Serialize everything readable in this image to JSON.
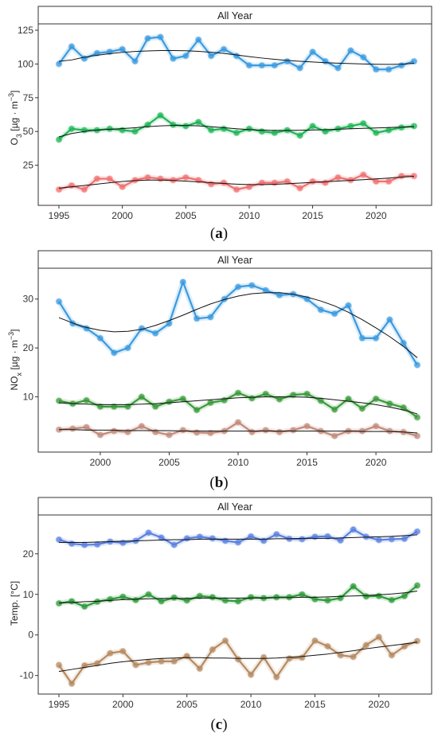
{
  "chart_data": [
    {
      "type": "line",
      "panel_label": "a",
      "strip_title": "All Year",
      "ylabel": "O",
      "ylabel_sub": "3",
      "ylabel_rest": " [µg · m",
      "ylabel_sup": "−3",
      "ylabel_end": "]",
      "xlabel": "",
      "xlim": [
        1995,
        2023
      ],
      "ylim": [
        0,
        125
      ],
      "xticks": [
        "1995",
        "2000",
        "2005",
        "2010",
        "2015",
        "2020"
      ],
      "yticks": [
        "25",
        "50",
        "75",
        "100",
        "125"
      ],
      "x": [
        1995,
        1996,
        1997,
        1998,
        1999,
        2000,
        2001,
        2002,
        2003,
        2004,
        2005,
        2006,
        2007,
        2008,
        2009,
        2010,
        2011,
        2012,
        2013,
        2014,
        2015,
        2016,
        2017,
        2018,
        2019,
        2020,
        2021,
        2022,
        2023
      ],
      "series": [
        {
          "color": "#3a9ae0",
          "values": [
            100,
            113,
            104,
            108,
            109,
            111,
            102,
            119,
            120,
            104,
            106,
            118,
            106,
            111,
            106,
            99,
            99,
            99,
            102,
            97,
            109,
            102,
            97,
            110,
            105,
            96,
            96,
            99,
            102
          ],
          "trend": [
            102,
            103,
            105,
            106.5,
            107.7,
            108.6,
            109.3,
            109.7,
            110,
            110,
            109.8,
            109.4,
            108.7,
            107.8,
            106.7,
            105.5,
            104.4,
            103.5,
            102.7,
            102,
            101.5,
            101,
            100.6,
            100.3,
            100,
            99.8,
            99.7,
            99.9,
            100.5
          ]
        },
        {
          "color": "#1fb556",
          "values": [
            44,
            52,
            51,
            51,
            52,
            51,
            50,
            55,
            62,
            55,
            54,
            57,
            51,
            52,
            49,
            52,
            50,
            49,
            51,
            47,
            54,
            50,
            52,
            54,
            56,
            49,
            51,
            53,
            54
          ],
          "trend": [
            46,
            48.5,
            50,
            51,
            51.6,
            52.2,
            52.8,
            53.6,
            54.2,
            54.5,
            54.5,
            54.2,
            53.6,
            52.8,
            52,
            51.4,
            51,
            50.8,
            50.8,
            50.9,
            51.1,
            51.4,
            51.7,
            52,
            52.3,
            52.6,
            52.9,
            53.2,
            53.5
          ]
        },
        {
          "color": "#f07070",
          "values": [
            7,
            10,
            7,
            15,
            15,
            9,
            14,
            16,
            15,
            14,
            16,
            14,
            11,
            12,
            7,
            9,
            12,
            12,
            13,
            8,
            13,
            12,
            16,
            14,
            18,
            13,
            13,
            17,
            17
          ],
          "trend": [
            8,
            9,
            10,
            11,
            12,
            13,
            13.6,
            14,
            14,
            13.7,
            13.2,
            12.7,
            12.1,
            11.5,
            11,
            10.7,
            10.7,
            10.9,
            11.3,
            11.8,
            12.3,
            12.8,
            13.3,
            13.8,
            14.3,
            14.9,
            15.5,
            16.2,
            16.8
          ]
        }
      ]
    },
    {
      "type": "line",
      "panel_label": "b",
      "strip_title": "All Year",
      "ylabel": "NO",
      "ylabel_sub": "x",
      "ylabel_rest": " [µg · m",
      "ylabel_sup": "−3",
      "ylabel_end": "]",
      "xlabel": "",
      "xlim": [
        1997,
        2023
      ],
      "ylim": [
        0,
        35
      ],
      "xticks": [
        "2000",
        "2005",
        "2010",
        "2015",
        "2020"
      ],
      "yticks": [
        "10",
        "20",
        "30"
      ],
      "x": [
        1997,
        1998,
        1999,
        2000,
        2001,
        2002,
        2003,
        2004,
        2005,
        2006,
        2007,
        2008,
        2009,
        2010,
        2011,
        2012,
        2013,
        2014,
        2015,
        2016,
        2017,
        2018,
        2019,
        2020,
        2021,
        2022,
        2023
      ],
      "series": [
        {
          "color": "#3a9ae0",
          "values": [
            29.5,
            25,
            24,
            22,
            19,
            20,
            24,
            23,
            25,
            33.5,
            26,
            26.3,
            30,
            32.5,
            32.8,
            31.8,
            30.8,
            31,
            30,
            27.8,
            27,
            28.7,
            22,
            22,
            25.8,
            21,
            16.5
          ],
          "trend": [
            26.2,
            25.1,
            24.2,
            23.6,
            23.3,
            23.4,
            23.8,
            24.6,
            25.6,
            26.7,
            27.9,
            29,
            29.9,
            30.6,
            31.1,
            31.3,
            31.3,
            31,
            30.4,
            29.6,
            28.6,
            27.3,
            25.8,
            24.1,
            22.3,
            20.3,
            18
          ]
        },
        {
          "color": "#3a9a3a",
          "values": [
            9.2,
            8.6,
            9.3,
            8,
            8,
            8,
            10,
            8,
            9,
            9.6,
            7.3,
            8.8,
            9.3,
            10.8,
            9.7,
            10.6,
            9.5,
            10.4,
            10.6,
            9.2,
            7.4,
            9.6,
            7.6,
            9.6,
            8.6,
            7.8,
            5.8
          ],
          "trend": [
            8.8,
            8.6,
            8.5,
            8.4,
            8.4,
            8.4,
            8.5,
            8.6,
            8.8,
            9,
            9.2,
            9.4,
            9.6,
            9.8,
            9.9,
            10,
            10,
            10,
            9.9,
            9.7,
            9.4,
            9.1,
            8.8,
            8.4,
            7.9,
            7.3,
            6.5
          ]
        },
        {
          "color": "#c08a7a",
          "values": [
            3.3,
            3.5,
            3.8,
            2.2,
            3,
            2.8,
            4,
            2.8,
            2.2,
            3.2,
            2.7,
            2.6,
            3,
            4.8,
            2.8,
            3.2,
            2.8,
            3.2,
            4,
            3,
            2,
            3,
            3,
            4,
            3,
            2.8,
            2
          ],
          "trend": [
            3.3,
            3.3,
            3.2,
            3.2,
            3.2,
            3.1,
            3.1,
            3.1,
            3.1,
            3,
            3,
            3,
            3,
            3,
            3,
            3,
            3,
            3,
            3,
            3,
            3,
            3,
            2.9,
            2.9,
            2.9,
            2.8,
            2.6
          ]
        }
      ]
    },
    {
      "type": "line",
      "panel_label": "c",
      "strip_title": "All Year",
      "ylabel": "Temp. [°C]",
      "ylabel_sub": "",
      "ylabel_rest": "",
      "ylabel_sup": "",
      "ylabel_end": "",
      "xlabel": "",
      "xlim": [
        1995,
        2023
      ],
      "ylim": [
        -13,
        28
      ],
      "xticks": [
        "1995",
        "2000",
        "2005",
        "2010",
        "2015",
        "2020"
      ],
      "yticks": [
        "-10",
        "0",
        "10",
        "20"
      ],
      "x": [
        1995,
        1996,
        1997,
        1998,
        1999,
        2000,
        2001,
        2002,
        2003,
        2004,
        2005,
        2006,
        2007,
        2008,
        2009,
        2010,
        2011,
        2012,
        2013,
        2014,
        2015,
        2016,
        2017,
        2018,
        2019,
        2020,
        2021,
        2022,
        2023
      ],
      "series": [
        {
          "color": "#5a80e0",
          "values": [
            23.5,
            22.5,
            22.2,
            22.3,
            23,
            22.7,
            23.2,
            25.2,
            24,
            22.2,
            23.8,
            24.2,
            23.8,
            23.2,
            22.8,
            24.3,
            23.2,
            24.8,
            23.7,
            23.6,
            24.2,
            24.3,
            23.3,
            26,
            24.2,
            23.4,
            23.6,
            23.7,
            25.5
          ],
          "trend": [
            22.8,
            22.8,
            22.8,
            22.9,
            23,
            23.1,
            23.2,
            23.3,
            23.4,
            23.5,
            23.5,
            23.6,
            23.6,
            23.6,
            23.6,
            23.6,
            23.6,
            23.7,
            23.7,
            23.8,
            23.8,
            23.8,
            23.9,
            24,
            24.1,
            24.2,
            24.3,
            24.5,
            24.7
          ]
        },
        {
          "color": "#2e9a3a",
          "values": [
            7.8,
            8.3,
            7,
            8.2,
            8.8,
            9.4,
            8.6,
            10,
            8.3,
            9.2,
            8.5,
            9.6,
            9.3,
            8.5,
            8.3,
            9.3,
            9.1,
            9.3,
            9.3,
            10,
            8.8,
            8.5,
            9.1,
            12,
            9.5,
            9.6,
            8.6,
            9.6,
            12.2
          ],
          "trend": [
            7.9,
            8,
            8.2,
            8.3,
            8.5,
            8.7,
            8.8,
            8.9,
            9,
            9,
            9,
            9.1,
            9.1,
            9.1,
            9.1,
            9.1,
            9.1,
            9.2,
            9.2,
            9.3,
            9.3,
            9.4,
            9.5,
            9.6,
            9.7,
            9.9,
            10.1,
            10.4,
            10.8
          ]
        },
        {
          "color": "#b58a60",
          "values": [
            -7.4,
            -12,
            -7.5,
            -7,
            -4.5,
            -4,
            -7.4,
            -6.8,
            -6.5,
            -6.5,
            -5.2,
            -8.3,
            -3.6,
            -1.4,
            -6,
            -9.8,
            -5.5,
            -10.4,
            -5.8,
            -5.6,
            -1.4,
            -2.8,
            -5,
            -5.4,
            -2.5,
            -0.5,
            -5,
            -2.8,
            -1.5
          ],
          "trend": [
            -9,
            -8.5,
            -8,
            -7.5,
            -7,
            -6.6,
            -6.3,
            -6,
            -5.8,
            -5.7,
            -5.6,
            -5.6,
            -5.7,
            -5.7,
            -5.8,
            -5.8,
            -5.8,
            -5.7,
            -5.5,
            -5.3,
            -5,
            -4.7,
            -4.3,
            -3.9,
            -3.4,
            -3,
            -2.6,
            -2.2,
            -1.8
          ]
        }
      ]
    }
  ]
}
